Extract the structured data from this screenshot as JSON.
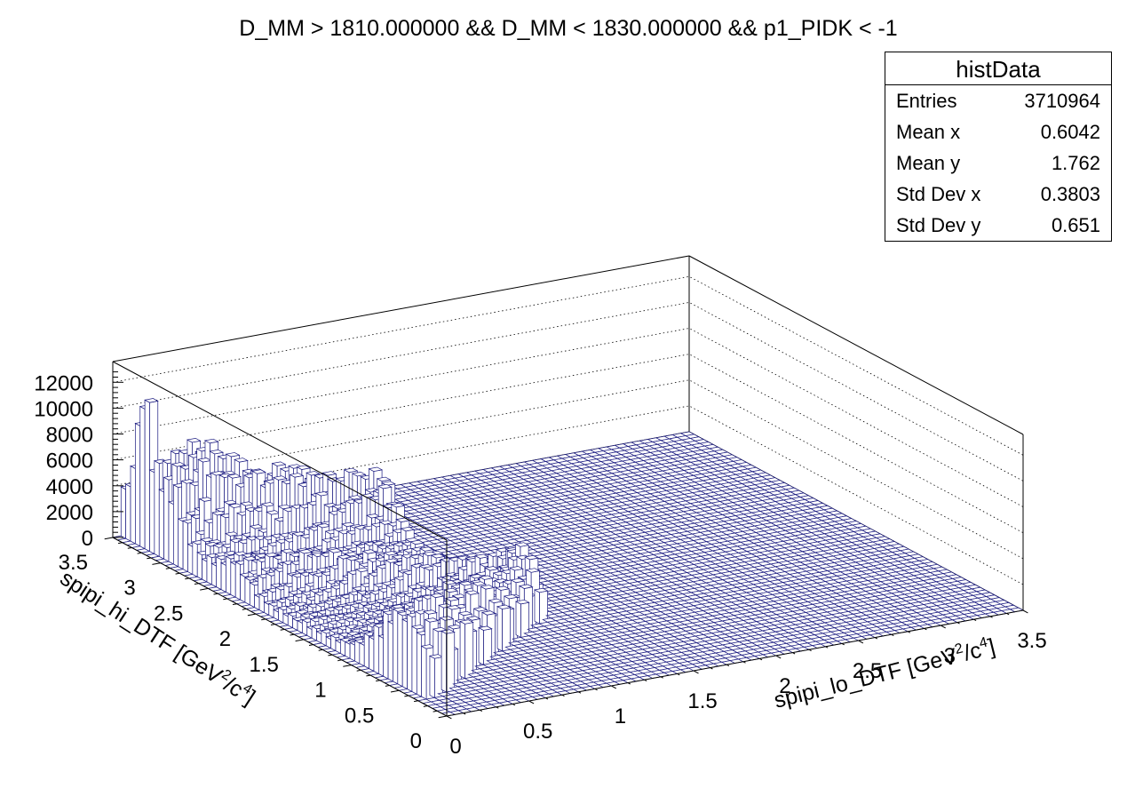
{
  "chart_data": {
    "type": "lego",
    "title": "D_MM > 1810.000000 && D_MM < 1830.000000 && p1_PIDK < -1",
    "xlabel": "spipi_lo_DTF [GeV²/c⁴]",
    "ylabel": "spipi_hi_DTF [GeV²/c⁴]",
    "xlabel_parts": {
      "a": "spipi_lo_DTF [GeV",
      "sup1": "2",
      "b": "/c",
      "sup2": "4",
      "c": "]"
    },
    "ylabel_parts": {
      "a": "spipi_hi_DTF [GeV",
      "sup1": "2",
      "b": "/c",
      "sup2": "4",
      "c": "]"
    },
    "xlim": [
      0,
      3.5
    ],
    "ylim": [
      0,
      3.5
    ],
    "zlim": [
      0,
      13600
    ],
    "x_ticks": [
      "0",
      "0.5",
      "1",
      "1.5",
      "2",
      "2.5",
      "3",
      "3.5"
    ],
    "y_ticks": [
      "0",
      "0.5",
      "1",
      "1.5",
      "2",
      "2.5",
      "3",
      "3.5"
    ],
    "z_ticks": [
      "0",
      "2000",
      "4000",
      "6000",
      "8000",
      "10000",
      "12000"
    ],
    "z_tick_values": [
      0,
      2000,
      4000,
      6000,
      8000,
      10000,
      12000
    ],
    "bins": 70,
    "line_color": "#1a1a80",
    "features": {
      "threshold": 0.075,
      "front_band_peak_height": 4200,
      "rear_band_peak_height": 4500,
      "rear_peak_position": [
        0.29,
        3.05
      ],
      "spike_heights": [
        11500,
        10800,
        9300,
        5800
      ]
    }
  },
  "stats": {
    "title": "histData",
    "rows": [
      {
        "label": "Entries",
        "value": "3710964"
      },
      {
        "label": "Mean x",
        "value": "0.6042"
      },
      {
        "label": "Mean y",
        "value": "1.762"
      },
      {
        "label": "Std Dev x",
        "value": "0.3803"
      },
      {
        "label": "Std Dev y",
        "value": "0.651"
      }
    ]
  }
}
